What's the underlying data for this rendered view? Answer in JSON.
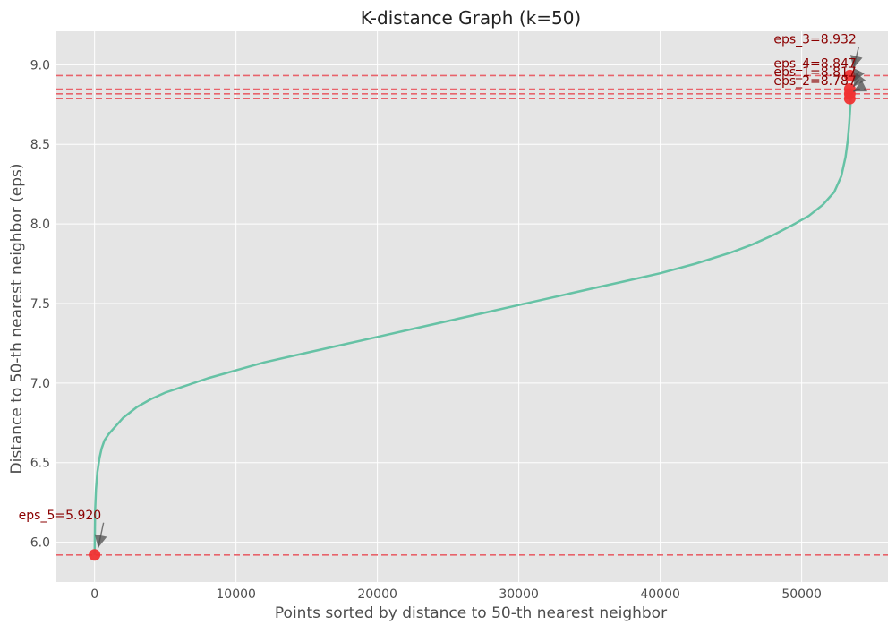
{
  "chart_data": {
    "type": "line",
    "title": "K-distance Graph (k=50)",
    "xlabel": "Points sorted by distance to 50-th nearest neighbor",
    "ylabel": "Distance to 50-th nearest neighbor (eps)",
    "xlim": [
      -2700,
      56100
    ],
    "ylim": [
      5.75,
      9.21
    ],
    "xticks": [
      0,
      10000,
      20000,
      30000,
      40000,
      50000
    ],
    "yticks": [
      6.0,
      6.5,
      7.0,
      7.5,
      8.0,
      8.5,
      9.0
    ],
    "grid": true,
    "colors": {
      "background": "#e5e5e5",
      "grid": "#ffffff",
      "curve": "#66c2a5",
      "threshold": "#e8636b",
      "point": "#f03232",
      "annotation_text": "#8b0000",
      "arrow": "#4d4d4d"
    },
    "series": [
      {
        "x": [
          0,
          40,
          100,
          200,
          350,
          500,
          700,
          1000,
          1500,
          2000,
          3000,
          4000,
          5000,
          6000,
          8000,
          10000,
          12000,
          15000,
          18000,
          20000,
          22500,
          25000,
          27500,
          30000,
          32500,
          35000,
          37500,
          40000,
          42500,
          45000,
          46500,
          48000,
          49500,
          50500,
          51500,
          52300,
          52800,
          53100,
          53250,
          53350,
          53450,
          53500
        ],
        "y": [
          5.92,
          6.2,
          6.33,
          6.44,
          6.53,
          6.59,
          6.64,
          6.68,
          6.73,
          6.78,
          6.85,
          6.9,
          6.94,
          6.97,
          7.03,
          7.08,
          7.13,
          7.19,
          7.25,
          7.29,
          7.34,
          7.39,
          7.44,
          7.49,
          7.54,
          7.59,
          7.64,
          7.69,
          7.75,
          7.82,
          7.87,
          7.93,
          8.0,
          8.05,
          8.12,
          8.2,
          8.3,
          8.42,
          8.52,
          8.62,
          8.75,
          8.85
        ]
      }
    ],
    "thresholds": [
      {
        "label": "eps_3=8.932",
        "y": 8.932
      },
      {
        "label": "eps_4=8.847",
        "y": 8.847
      },
      {
        "label": "eps_1=8.817",
        "y": 8.817
      },
      {
        "label": "eps_2=8.787",
        "y": 8.787
      },
      {
        "label": "eps_5=5.920",
        "y": 5.92
      }
    ],
    "highlight_points": [
      {
        "x": 53400,
        "y": 8.932
      },
      {
        "x": 53400,
        "y": 8.847
      },
      {
        "x": 53400,
        "y": 8.817
      },
      {
        "x": 53400,
        "y": 8.787
      },
      {
        "x": 0,
        "y": 5.92
      }
    ]
  }
}
